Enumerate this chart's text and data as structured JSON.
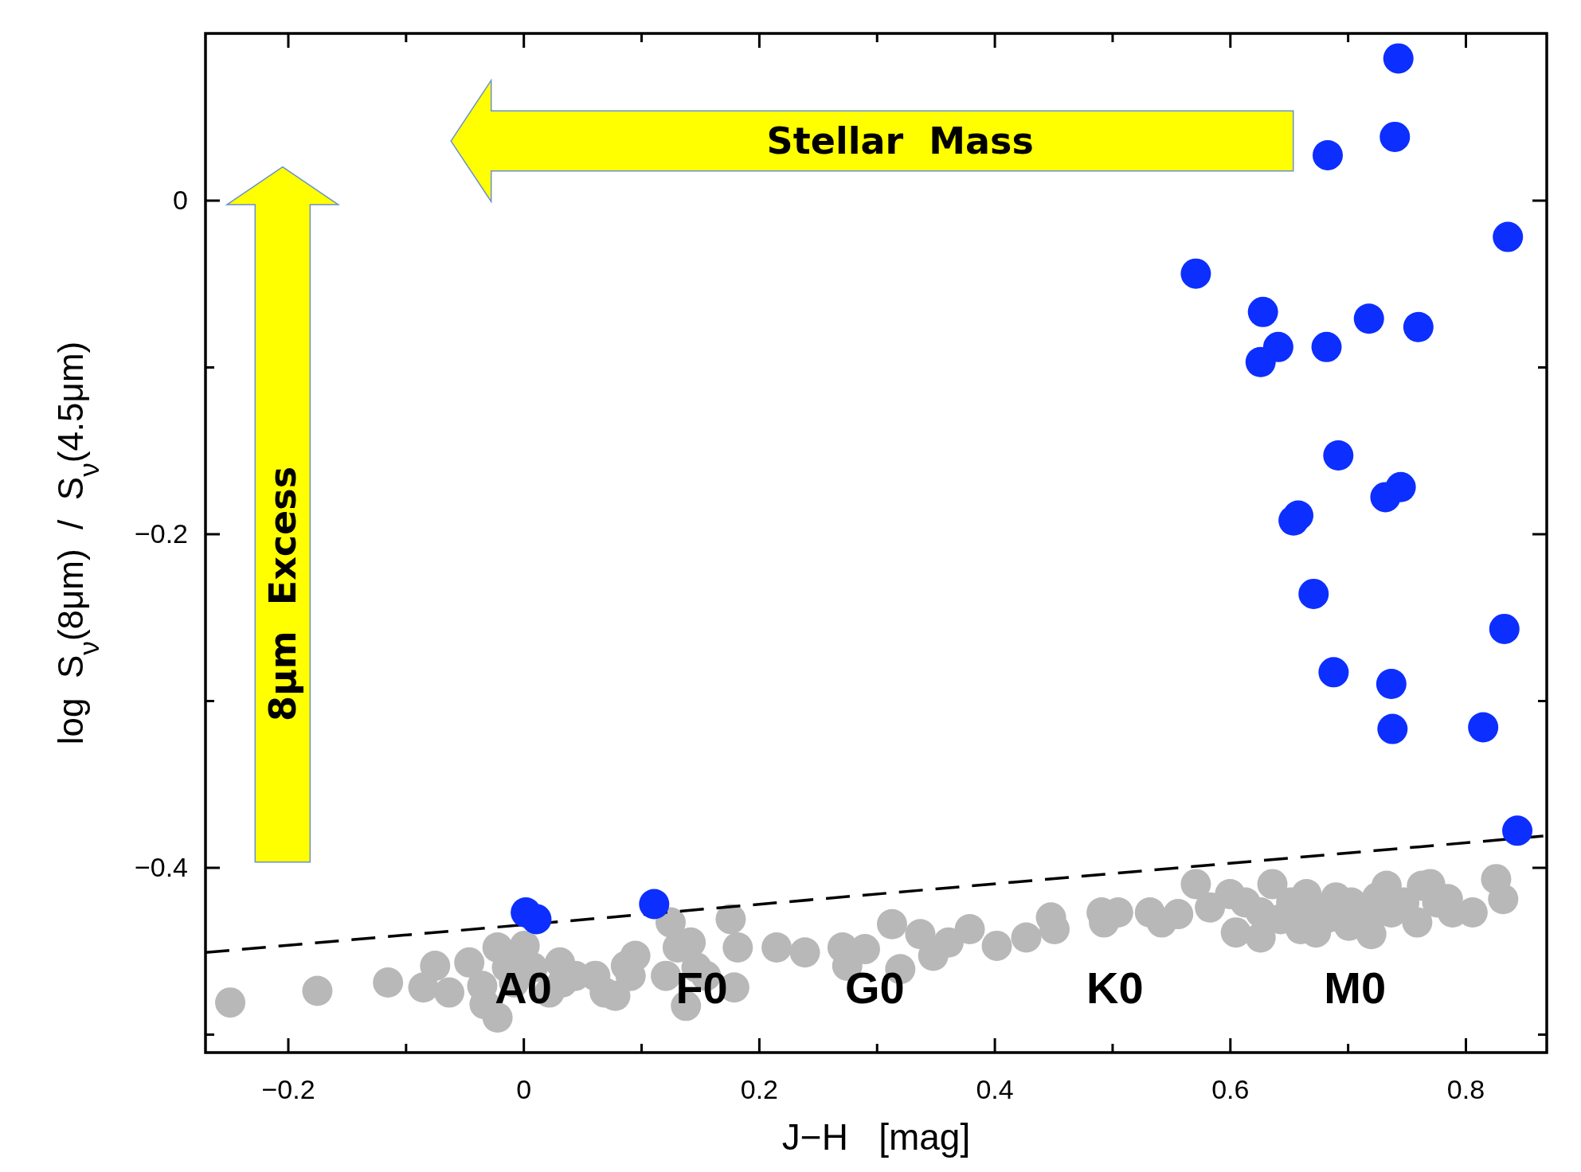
{
  "chart_data": {
    "type": "scatter",
    "xlabel": "J−H   [mag]",
    "ylabel": "log  S$_{ν}$(8μm)  /  S$_{ν}$(4.5μm)",
    "xlim": [
      -0.27,
      0.869
    ],
    "ylim": [
      -0.511,
      0.1
    ],
    "xticks": [
      {
        "value": -0.2,
        "label": "−0.2"
      },
      {
        "value": -0.1,
        "label": null
      },
      0,
      {
        "value": 0.1,
        "label": null
      },
      0.2,
      {
        "value": 0.3,
        "label": null
      },
      0.4,
      {
        "value": 0.5,
        "label": null
      },
      0.6,
      {
        "value": 0.7,
        "label": null
      },
      0.8
    ],
    "yticks": [
      {
        "value": -0.5,
        "label": null
      },
      {
        "value": -0.4,
        "label": "−0.4"
      },
      {
        "value": -0.3,
        "label": null
      },
      {
        "value": -0.2,
        "label": "−0.2"
      },
      {
        "value": -0.1,
        "label": null
      },
      0
    ],
    "grid": false,
    "marker": "circle",
    "annotations": [
      "Stellar  Mass",
      "8μm  Excess",
      "A0",
      "F0",
      "G0",
      "K0",
      "M0"
    ],
    "series": [
      {
        "color": "#b8b8b8",
        "x": [
          -0.249,
          -0.175,
          -0.115,
          -0.085,
          -0.075,
          -0.063,
          -0.046,
          -0.035,
          -0.022,
          -0.033,
          -0.022,
          -0.014,
          -0.008,
          0.001,
          0.008,
          0.022,
          0.031,
          0.033,
          0.044,
          0.061,
          0.069,
          0.078,
          0.087,
          0.095,
          0.091,
          0.125,
          0.121,
          0.131,
          0.142,
          0.147,
          0.138,
          0.155,
          0.176,
          0.182,
          0.179,
          0.215,
          0.239,
          0.271,
          0.275,
          0.29,
          0.313,
          0.32,
          0.337,
          0.348,
          0.361,
          0.379,
          0.402,
          0.427,
          0.448,
          0.451,
          0.491,
          0.493,
          0.505,
          0.532,
          0.542,
          0.556,
          0.571,
          0.583,
          0.6,
          0.605,
          0.613,
          0.626,
          0.626,
          0.636,
          0.643,
          0.652,
          0.665,
          0.669,
          0.673,
          0.684,
          0.69,
          0.701,
          0.703,
          0.716,
          0.725,
          0.733,
          0.737,
          0.748,
          0.759,
          0.763,
          0.77,
          0.776,
          0.785,
          0.789,
          0.806,
          0.826,
          0.832,
          0.66,
          0.72
        ],
        "values": [
          -0.481,
          -0.474,
          -0.469,
          -0.472,
          -0.459,
          -0.475,
          -0.457,
          -0.471,
          -0.448,
          -0.482,
          -0.49,
          -0.46,
          -0.469,
          -0.447,
          -0.46,
          -0.475,
          -0.457,
          -0.469,
          -0.465,
          -0.465,
          -0.475,
          -0.477,
          -0.459,
          -0.453,
          -0.465,
          -0.433,
          -0.465,
          -0.448,
          -0.445,
          -0.46,
          -0.483,
          -0.465,
          -0.431,
          -0.448,
          -0.472,
          -0.448,
          -0.451,
          -0.448,
          -0.459,
          -0.449,
          -0.434,
          -0.461,
          -0.44,
          -0.453,
          -0.445,
          -0.437,
          -0.447,
          -0.442,
          -0.43,
          -0.437,
          -0.427,
          -0.433,
          -0.427,
          -0.427,
          -0.433,
          -0.428,
          -0.41,
          -0.424,
          -0.416,
          -0.439,
          -0.421,
          -0.442,
          -0.427,
          -0.41,
          -0.431,
          -0.421,
          -0.416,
          -0.425,
          -0.439,
          -0.43,
          -0.418,
          -0.435,
          -0.421,
          -0.427,
          -0.418,
          -0.411,
          -0.427,
          -0.421,
          -0.433,
          -0.411,
          -0.41,
          -0.421,
          -0.419,
          -0.427,
          -0.427,
          -0.407,
          -0.419,
          -0.437,
          -0.44
        ]
      },
      {
        "type": "line",
        "color": "#000000",
        "line_style": "dashed",
        "marker": "none",
        "x": [
          -0.27,
          0.869
        ],
        "values": [
          -0.451,
          -0.381
        ]
      },
      {
        "color": "#0c2eff",
        "x": [
          0.743,
          0.74,
          0.683,
          0.836,
          0.571,
          0.628,
          0.718,
          0.76,
          0.641,
          0.682,
          0.626,
          0.692,
          0.745,
          0.732,
          0.658,
          0.654,
          0.671,
          0.833,
          0.688,
          0.737,
          0.738,
          0.815,
          0.844,
          0.002,
          0.011,
          0.111
        ],
        "values": [
          0.085,
          0.038,
          0.027,
          -0.022,
          -0.044,
          -0.067,
          -0.071,
          -0.076,
          -0.088,
          -0.088,
          -0.097,
          -0.153,
          -0.172,
          -0.178,
          -0.189,
          -0.192,
          -0.236,
          -0.257,
          -0.283,
          -0.29,
          -0.317,
          -0.316,
          -0.378,
          -0.427,
          -0.431,
          -0.422
        ]
      }
    ]
  }
}
